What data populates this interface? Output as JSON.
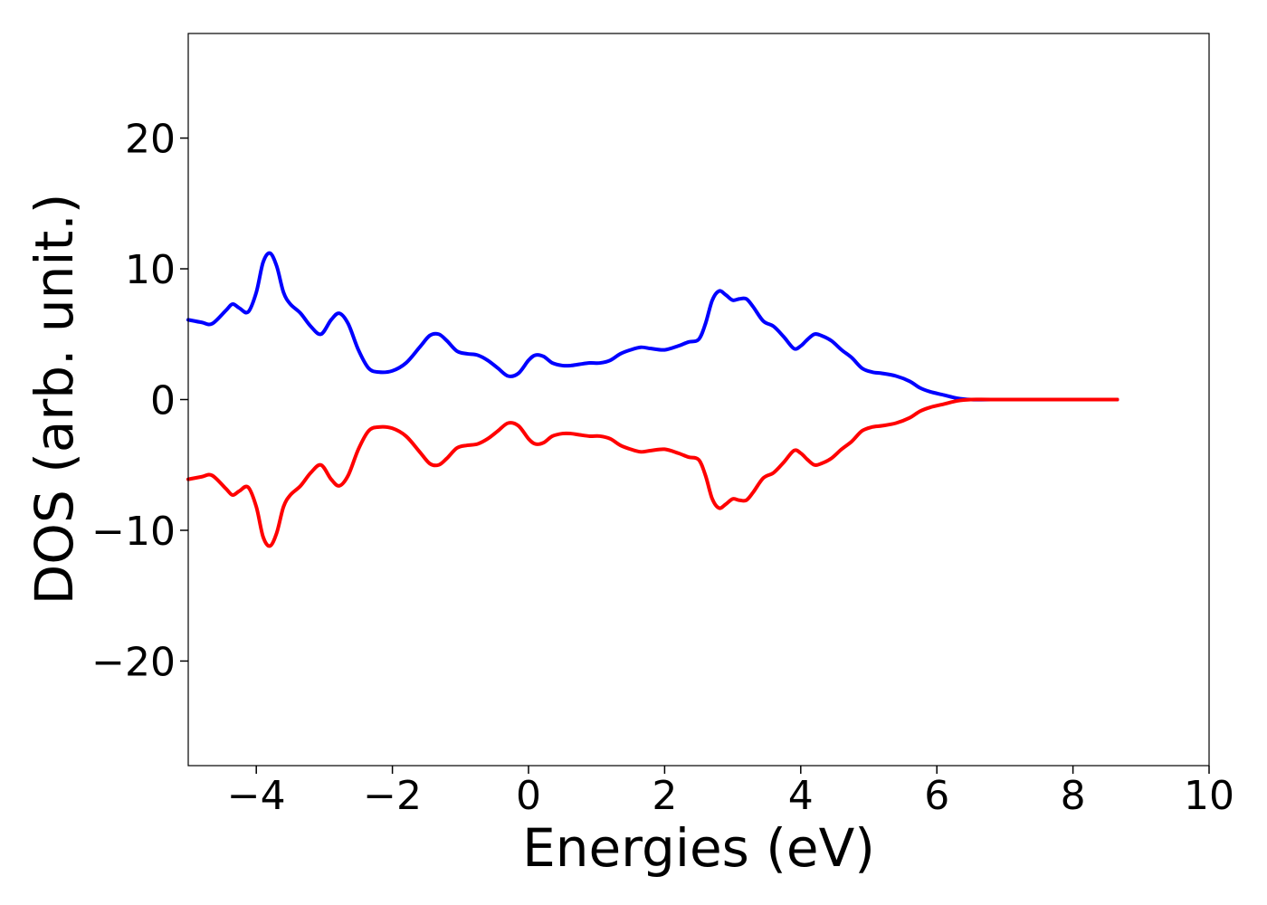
{
  "chart_data": {
    "type": "line",
    "title": "",
    "xlabel": "Energies (eV)",
    "ylabel": "DOS (arb. unit.)",
    "xlim": [
      -5,
      10
    ],
    "ylim": [
      -28,
      28
    ],
    "grid": false,
    "xticks": [
      -4,
      -2,
      0,
      2,
      4,
      6,
      8,
      10
    ],
    "yticks": [
      -20,
      -10,
      0,
      10,
      20
    ],
    "series": [
      {
        "color": "#0000ff",
        "x": [
          -5.0,
          -4.8,
          -4.65,
          -4.45,
          -4.35,
          -4.25,
          -4.12,
          -4.0,
          -3.9,
          -3.8,
          -3.7,
          -3.6,
          -3.5,
          -3.35,
          -3.2,
          -3.05,
          -2.9,
          -2.78,
          -2.65,
          -2.5,
          -2.35,
          -2.2,
          -2.0,
          -1.8,
          -1.6,
          -1.45,
          -1.32,
          -1.2,
          -1.05,
          -0.9,
          -0.75,
          -0.6,
          -0.45,
          -0.3,
          -0.15,
          0.0,
          0.1,
          0.22,
          0.35,
          0.5,
          0.62,
          0.75,
          0.9,
          1.05,
          1.2,
          1.35,
          1.5,
          1.65,
          1.8,
          2.0,
          2.2,
          2.35,
          2.5,
          2.6,
          2.7,
          2.8,
          2.9,
          3.0,
          3.1,
          3.2,
          3.3,
          3.45,
          3.6,
          3.75,
          3.9,
          4.0,
          4.1,
          4.2,
          4.3,
          4.45,
          4.6,
          4.75,
          4.9,
          5.05,
          5.2,
          5.4,
          5.6,
          5.75,
          5.9,
          6.1,
          6.3,
          6.5,
          6.8,
          7.5,
          8.0,
          8.65
        ],
        "y": [
          6.1,
          5.9,
          5.8,
          6.8,
          7.3,
          7.0,
          6.7,
          8.2,
          10.5,
          11.2,
          10.2,
          8.2,
          7.3,
          6.6,
          5.6,
          5.0,
          6.1,
          6.6,
          5.8,
          3.8,
          2.4,
          2.1,
          2.2,
          2.8,
          4.0,
          4.9,
          5.0,
          4.5,
          3.7,
          3.5,
          3.4,
          3.0,
          2.4,
          1.8,
          2.0,
          3.0,
          3.4,
          3.3,
          2.8,
          2.6,
          2.6,
          2.7,
          2.8,
          2.8,
          3.0,
          3.5,
          3.8,
          4.0,
          3.9,
          3.8,
          4.1,
          4.4,
          4.6,
          5.8,
          7.6,
          8.3,
          8.0,
          7.6,
          7.7,
          7.7,
          7.1,
          6.0,
          5.6,
          4.8,
          3.9,
          4.1,
          4.6,
          5.0,
          4.9,
          4.5,
          3.8,
          3.2,
          2.4,
          2.1,
          2.0,
          1.8,
          1.4,
          0.9,
          0.6,
          0.35,
          0.1,
          0.0,
          0.0,
          0.0,
          0.0,
          0.0
        ]
      },
      {
        "color": "#ff0000",
        "x": [
          -5.0,
          -4.8,
          -4.65,
          -4.45,
          -4.35,
          -4.25,
          -4.12,
          -4.0,
          -3.9,
          -3.8,
          -3.7,
          -3.6,
          -3.5,
          -3.35,
          -3.2,
          -3.05,
          -2.9,
          -2.78,
          -2.65,
          -2.5,
          -2.35,
          -2.2,
          -2.0,
          -1.8,
          -1.6,
          -1.45,
          -1.32,
          -1.2,
          -1.05,
          -0.9,
          -0.75,
          -0.6,
          -0.45,
          -0.3,
          -0.15,
          0.0,
          0.1,
          0.22,
          0.35,
          0.5,
          0.62,
          0.75,
          0.9,
          1.05,
          1.2,
          1.35,
          1.5,
          1.65,
          1.8,
          2.0,
          2.2,
          2.35,
          2.5,
          2.6,
          2.7,
          2.8,
          2.9,
          3.0,
          3.1,
          3.2,
          3.3,
          3.45,
          3.6,
          3.75,
          3.9,
          4.0,
          4.1,
          4.2,
          4.3,
          4.45,
          4.6,
          4.75,
          4.9,
          5.05,
          5.2,
          5.4,
          5.6,
          5.75,
          5.9,
          6.1,
          6.3,
          6.5,
          6.8,
          7.5,
          8.0,
          8.65
        ],
        "y": [
          -6.1,
          -5.9,
          -5.8,
          -6.8,
          -7.3,
          -7.0,
          -6.7,
          -8.2,
          -10.5,
          -11.2,
          -10.2,
          -8.2,
          -7.3,
          -6.6,
          -5.6,
          -5.0,
          -6.1,
          -6.6,
          -5.8,
          -3.8,
          -2.4,
          -2.1,
          -2.2,
          -2.8,
          -4.0,
          -4.9,
          -5.0,
          -4.5,
          -3.7,
          -3.5,
          -3.4,
          -3.0,
          -2.4,
          -1.8,
          -2.0,
          -3.0,
          -3.4,
          -3.3,
          -2.8,
          -2.6,
          -2.6,
          -2.7,
          -2.8,
          -2.8,
          -3.0,
          -3.5,
          -3.8,
          -4.0,
          -3.9,
          -3.8,
          -4.1,
          -4.4,
          -4.6,
          -5.8,
          -7.6,
          -8.3,
          -8.0,
          -7.6,
          -7.7,
          -7.7,
          -7.1,
          -6.0,
          -5.6,
          -4.8,
          -3.9,
          -4.1,
          -4.6,
          -5.0,
          -4.9,
          -4.5,
          -3.8,
          -3.2,
          -2.4,
          -2.1,
          -2.0,
          -1.8,
          -1.4,
          -0.9,
          -0.6,
          -0.35,
          -0.1,
          0.0,
          0.0,
          0.0,
          0.0,
          0.0
        ]
      }
    ]
  }
}
